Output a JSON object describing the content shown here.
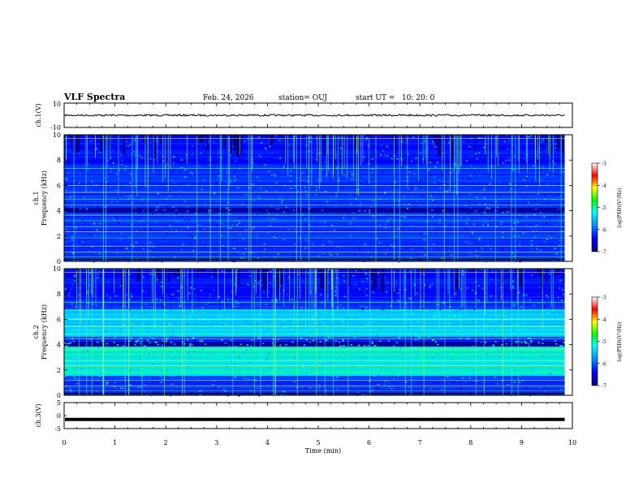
{
  "header": {
    "title": "VLF Spectra",
    "date": "Feb. 24, 2026",
    "station": "station= OUJ",
    "start": "start UT =   10: 20: 0"
  },
  "chart_data": [
    {
      "type": "line",
      "panel": "ch1-waveform",
      "ylabel": "ch.1(V)",
      "ylim": [
        -10,
        10
      ],
      "yticks": [
        "10",
        "-10"
      ],
      "xlim": [
        0,
        9.85
      ],
      "trace_level": 0,
      "color": "#000000"
    },
    {
      "type": "heatmap",
      "panel": "ch1-spectrogram",
      "ylabel": "ch.1\nFrequency (kHz)",
      "ylabel_top": "ch.1",
      "ylabel_bottom": "Frequency (kHz)",
      "ylim": [
        0,
        10
      ],
      "yticks": [
        "0",
        "2",
        "4",
        "6",
        "8",
        "10"
      ],
      "xlim": [
        0,
        9.85
      ],
      "colorbar": {
        "label": "log(PSD)(V²/Hz)",
        "range": [
          -7,
          -3
        ],
        "ticks": [
          "-3",
          "-4",
          "-5",
          "-6",
          "-7"
        ]
      }
    },
    {
      "type": "heatmap",
      "panel": "ch2-spectrogram",
      "ylabel": "ch.2\nFrequency (kHz)",
      "ylabel_top": "ch.2",
      "ylabel_bottom": "Frequency (kHz)",
      "ylim": [
        0,
        10
      ],
      "yticks": [
        "0",
        "2",
        "4",
        "6",
        "8",
        "10"
      ],
      "xlim": [
        0,
        9.85
      ],
      "colorbar": {
        "label": "log(PSD)(V²/Hz)",
        "range": [
          -7,
          -3
        ],
        "ticks": [
          "-3",
          "-4",
          "-5",
          "-6",
          "-7"
        ]
      }
    },
    {
      "type": "line",
      "panel": "ch3-waveform",
      "ylabel": "ch.3(V)",
      "ylim": [
        -5,
        5
      ],
      "yticks": [
        "5",
        "0",
        "-5"
      ],
      "xlim": [
        0,
        9.85
      ],
      "trace_level": -1.5,
      "color": "#000000"
    }
  ],
  "xaxis": {
    "label": "Time (min)",
    "range": [
      0,
      10
    ],
    "ticks": [
      "0",
      "1",
      "2",
      "3",
      "4",
      "5",
      "6",
      "7",
      "8",
      "9",
      "10"
    ]
  }
}
